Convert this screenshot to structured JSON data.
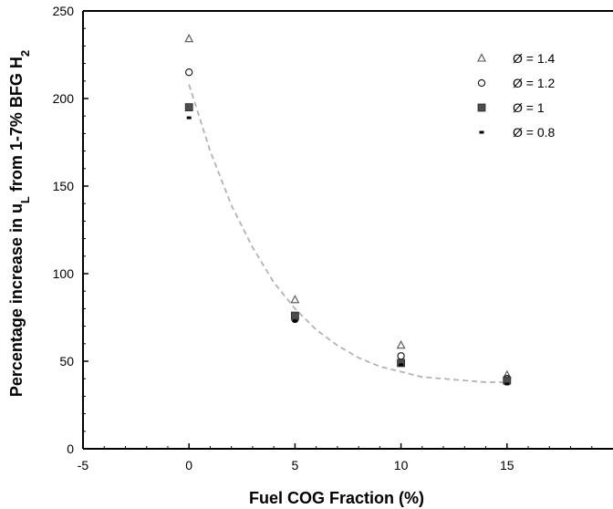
{
  "chart_data": {
    "type": "scatter",
    "title": "",
    "xlabel": "Fuel COG Fraction (%)",
    "ylabel_main": "Percentage increase in u",
    "ylabel_sub": "L",
    "ylabel_tail": " from 1-7% BFG H",
    "ylabel_sub2": "2",
    "xlim": [
      -5,
      20
    ],
    "ylim": [
      0,
      250
    ],
    "xticks": [
      -5,
      0,
      5,
      10,
      15
    ],
    "yticks": [
      0,
      50,
      100,
      150,
      200,
      250
    ],
    "grid": false,
    "legend_position": "top-right",
    "series": [
      {
        "name": "Ø = 1.4",
        "marker": "triangle",
        "x": [
          0,
          5,
          10,
          15
        ],
        "y": [
          234,
          85,
          59,
          42
        ]
      },
      {
        "name": "Ø = 1.2",
        "marker": "circle",
        "x": [
          0,
          5,
          10,
          15
        ],
        "y": [
          215,
          74,
          53,
          40
        ]
      },
      {
        "name": "Ø = 1",
        "marker": "square",
        "x": [
          0,
          5,
          10,
          15
        ],
        "y": [
          195,
          76,
          49,
          39
        ]
      },
      {
        "name": "Ø = 0.8",
        "marker": "dash",
        "x": [
          0,
          5,
          10,
          15
        ],
        "y": [
          189,
          73,
          48,
          37
        ]
      }
    ],
    "trendline": {
      "style": "dashed",
      "color": "#b3b3b3",
      "x": [
        0,
        1,
        2,
        3,
        4,
        5,
        6,
        7,
        8,
        9,
        10,
        11,
        12,
        13,
        14,
        15
      ],
      "y": [
        208,
        170,
        139,
        115,
        95,
        80,
        68,
        59,
        52,
        47,
        44,
        41,
        40,
        39,
        38,
        38
      ]
    }
  }
}
